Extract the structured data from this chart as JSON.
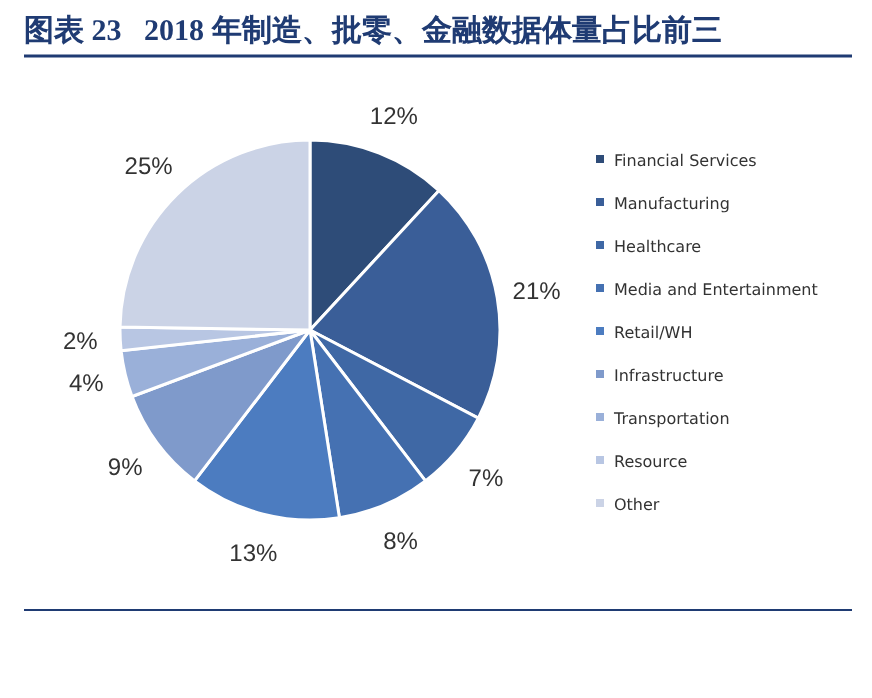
{
  "chart_data": {
    "type": "pie",
    "title": "图表 23   2018 年制造、批零、金融数据体量占比前三",
    "categories": [
      "Financial Services",
      "Manufacturing",
      "Healthcare",
      "Media and Entertainment",
      "Retail/WH",
      "Infrastructure",
      "Transportation",
      "Resource",
      "Other"
    ],
    "values": [
      12,
      21,
      7,
      8,
      13,
      9,
      4,
      2,
      25
    ],
    "colors": [
      "#2e4c78",
      "#3a5e98",
      "#3f68a5",
      "#4571b2",
      "#4c7cc0",
      "#7f9acb",
      "#9ab0d9",
      "#b8c6e3",
      "#cbd3e6"
    ],
    "value_labels": [
      "12%",
      "21%",
      "7%",
      "8%",
      "13%",
      "9%",
      "4%",
      "2%",
      "25%"
    ],
    "legend": "right"
  }
}
